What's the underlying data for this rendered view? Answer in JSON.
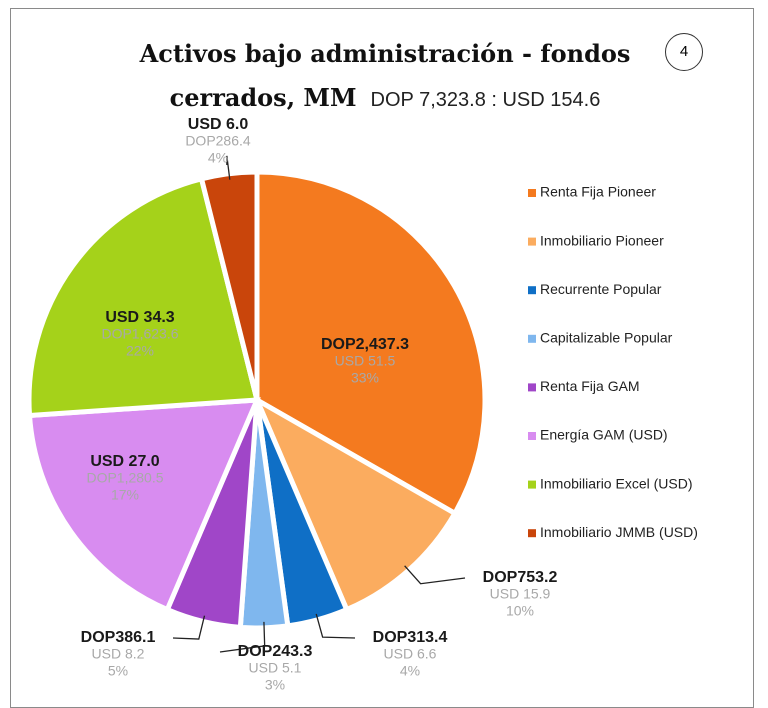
{
  "chart_data": {
    "type": "pie",
    "title": "Activos bajo administración - fondos cerrados, MM",
    "subtitle": "DOP 7,323.8 : USD 154.6",
    "badge": 4,
    "categories": [
      "Renta Fija Pioneer",
      "Inmobiliario Pioneer",
      "Recurrente Popular",
      "Capitalizable Popular",
      "Renta Fija  GAM",
      "Energía GAM (USD)",
      "Inmobiliario Excel (USD)",
      "Inmobiliario JMMB (USD)"
    ],
    "values": [
      2437.3,
      753.2,
      313.4,
      243.3,
      386.1,
      1280.5,
      1623.6,
      286.4
    ],
    "value_labels": [
      "DOP2,437.3",
      "DOP753.2",
      "DOP313.4",
      "DOP243.3",
      "DOP386.1",
      "DOP1,280.5",
      "DOP1,623.6",
      "DOP286.4"
    ],
    "usd_values": [
      51.5,
      15.9,
      6.6,
      5.1,
      8.2,
      27.0,
      34.3,
      6.0
    ],
    "usd_labels": [
      "USD 51.5",
      "USD 15.9",
      "USD 6.6",
      "USD 5.1",
      "USD 8.2",
      "USD 27.0",
      "USD 34.3",
      "USD 6.0"
    ],
    "percentages": [
      33,
      10,
      4,
      3,
      5,
      17,
      22,
      4
    ],
    "percent_labels": [
      "33%",
      "10%",
      "4%",
      "3%",
      "5%",
      "17%",
      "22%",
      "4%"
    ],
    "usd_first": [
      false,
      false,
      false,
      false,
      false,
      true,
      true,
      true
    ],
    "colors": [
      "#f47a1f",
      "#fbac5f",
      "#0f6fc6",
      "#7fb7ee",
      "#a046c8",
      "#d88cf0",
      "#a5d21a",
      "#c9450b"
    ],
    "legend": "right"
  }
}
